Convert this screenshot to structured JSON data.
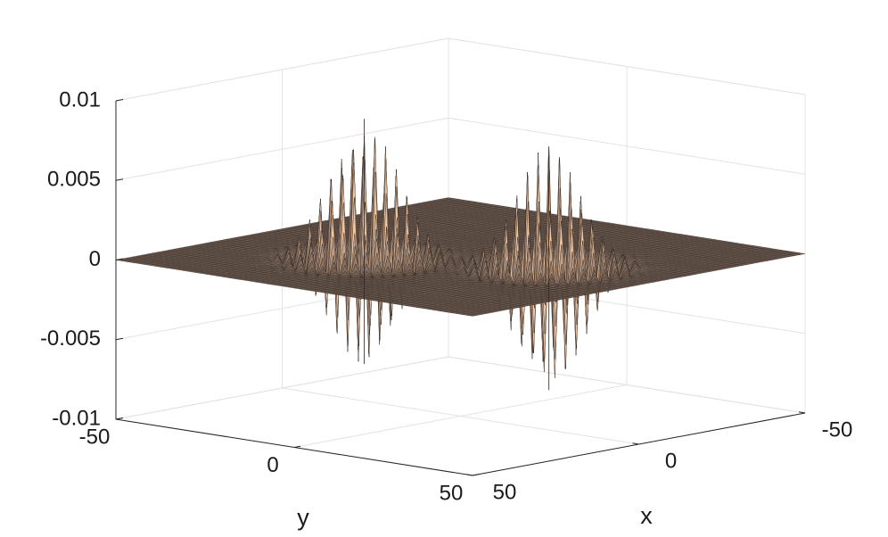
{
  "chart_data": {
    "type": "surface",
    "xlabel": "x",
    "ylabel": "y",
    "xlim": [
      -50,
      50
    ],
    "ylim": [
      -50,
      50
    ],
    "zlim": [
      -0.01,
      0.01
    ],
    "xticks": [
      -50,
      0,
      50
    ],
    "yticks": [
      -50,
      0,
      50
    ],
    "zticks": [
      -0.01,
      -0.005,
      0,
      0.005,
      0.01
    ],
    "grid": true,
    "color": "#f1c6a3",
    "edge_color": "#2b2220",
    "peaks": [
      {
        "x": 15,
        "y": -13,
        "zmax": 0.0088,
        "zmin": -0.0066
      },
      {
        "x": -3,
        "y": 22,
        "zmax": 0.0076,
        "zmin": -0.0077
      }
    ]
  }
}
